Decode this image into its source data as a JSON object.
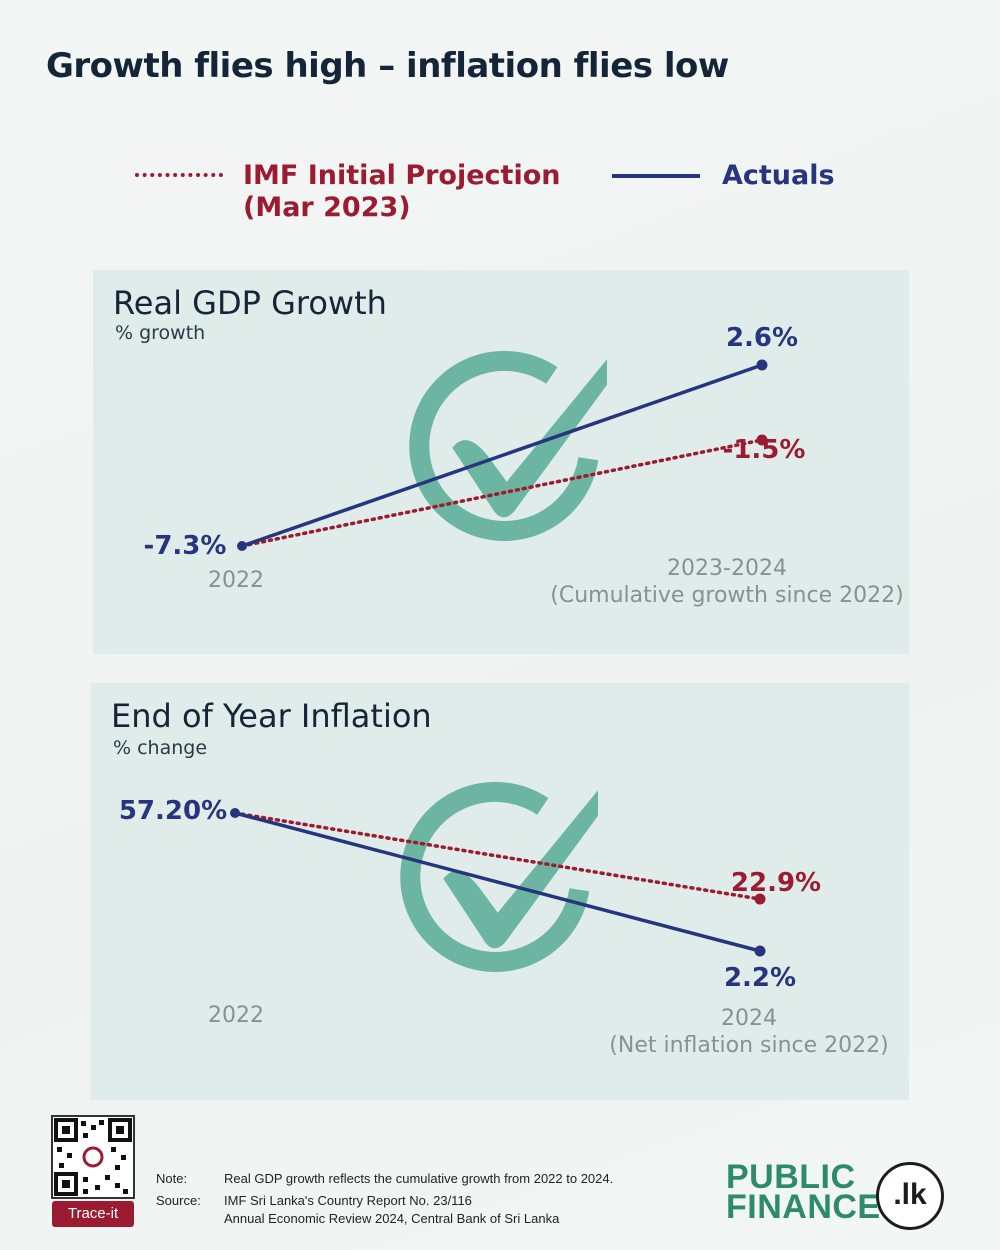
{
  "title": "Growth flies high – inflation flies low",
  "legend": {
    "projection_label": "IMF Initial Projection (Mar 2023)",
    "actuals_label": "Actuals"
  },
  "colors": {
    "projection": "#9b1b30",
    "actuals": "#27357e",
    "check": "#6db5a3",
    "axis_text": "#8a8f95"
  },
  "chart_data": [
    {
      "type": "line",
      "title": "Real GDP Growth",
      "subtitle": "% growth",
      "x": [
        "2022",
        "2023-2024"
      ],
      "x_sublabels": [
        "",
        "(Cumulative growth since 2022)"
      ],
      "series": [
        {
          "name": "Actuals",
          "values": [
            -7.3,
            2.6
          ],
          "labels": [
            "-7.3%",
            "2.6%"
          ]
        },
        {
          "name": "IMF Initial Projection (Mar 2023)",
          "values": [
            -7.3,
            -1.5
          ],
          "labels": [
            "",
            "-1.5%"
          ]
        }
      ],
      "icon": "check-circle-icon"
    },
    {
      "type": "line",
      "title": "End of Year Inflation",
      "subtitle": "% change",
      "x": [
        "2022",
        "2024"
      ],
      "x_sublabels": [
        "",
        "(Net inflation since 2022)"
      ],
      "series": [
        {
          "name": "Actuals",
          "values": [
            57.2,
            2.2
          ],
          "labels": [
            "57.20%",
            "2.2%"
          ]
        },
        {
          "name": "IMF Initial Projection (Mar 2023)",
          "values": [
            57.2,
            22.9
          ],
          "labels": [
            "",
            "22.9%"
          ]
        }
      ],
      "icon": "check-circle-icon"
    }
  ],
  "footer": {
    "trace_label": "Trace-it",
    "note_key": "Note:",
    "note_text": "Real GDP growth reflects the cumulative growth from 2022 to 2024.",
    "source_key": "Source:",
    "source_line1": "IMF Sri Lanka's Country Report No. 23/116",
    "source_line2": "Annual Economic Review 2024, Central Bank of Sri Lanka",
    "brand_line1": "PUBLIC",
    "brand_line2": "FINANCE",
    "brand_badge": ".lk"
  }
}
